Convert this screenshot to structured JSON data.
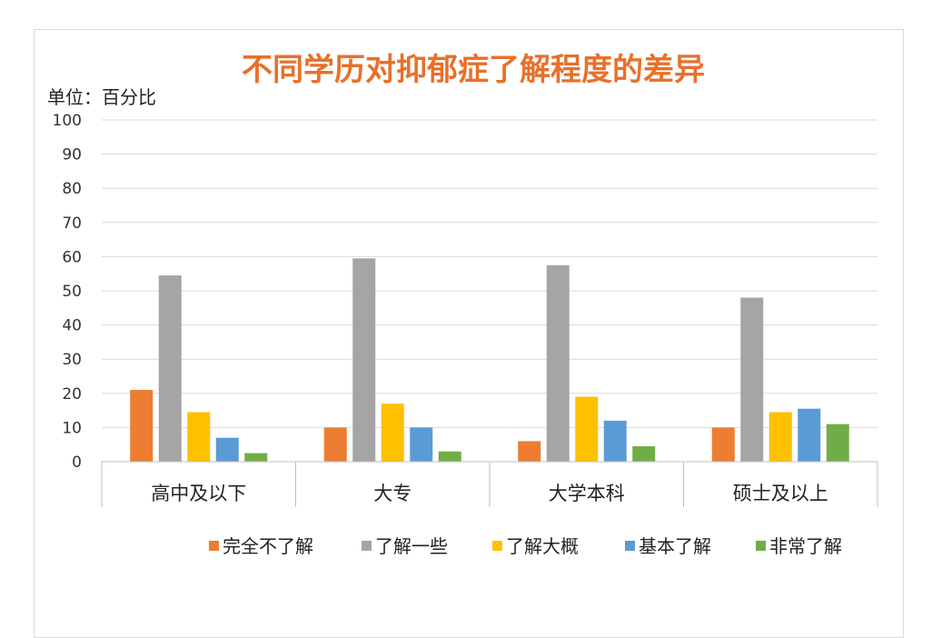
{
  "chart_data": {
    "type": "bar",
    "title": "不同学历对抑郁症了解程度的差异",
    "unit_label": "单位：百分比",
    "title_color": "#e8702a",
    "ylim": [
      0,
      100
    ],
    "yticks": [
      0,
      10,
      20,
      30,
      40,
      50,
      60,
      70,
      80,
      90,
      100
    ],
    "grid": true,
    "legend_position": "bottom",
    "categories": [
      "高中及以下",
      "大专",
      "大学本科",
      "硕士及以上"
    ],
    "series": [
      {
        "name": "完全不了解",
        "color": "#ed7d31",
        "values": [
          21,
          10,
          6,
          10
        ]
      },
      {
        "name": "了解一些",
        "color": "#a5a5a5",
        "values": [
          54.5,
          59.5,
          57.5,
          48
        ]
      },
      {
        "name": "了解大概",
        "color": "#ffc000",
        "values": [
          14.5,
          17,
          19,
          14.5
        ]
      },
      {
        "name": "基本了解",
        "color": "#5b9bd5",
        "values": [
          7,
          10,
          12,
          15.5
        ]
      },
      {
        "name": "非常了解",
        "color": "#70ad47",
        "values": [
          2.5,
          3,
          4.5,
          11
        ]
      }
    ]
  }
}
